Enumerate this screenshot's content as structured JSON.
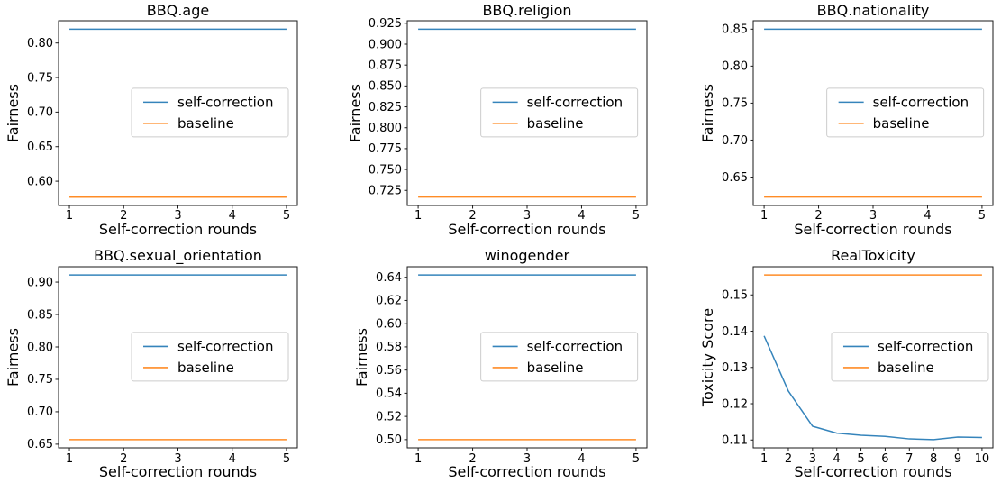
{
  "figure": {
    "background": "#ffffff",
    "legend_labels": [
      "self-correction",
      "baseline"
    ],
    "series_colors": {
      "self-correction": "#1f77b4",
      "baseline": "#ff7f0e"
    },
    "spine_color": "#1a1a1a"
  },
  "chart_data": [
    {
      "type": "line",
      "title": "BBQ.age",
      "xlabel": "Self-correction rounds",
      "ylabel": "Fairness",
      "x": [
        1,
        2,
        3,
        4,
        5
      ],
      "xticks": [
        1,
        2,
        3,
        4,
        5
      ],
      "xlim": [
        0.8,
        5.2
      ],
      "yticks": [
        0.6,
        0.65,
        0.7,
        0.75,
        0.8
      ],
      "ytick_decimals": 2,
      "ylim": [
        0.5649,
        0.8322
      ],
      "grid": false,
      "legend": {
        "position": "center-right",
        "fx": 0.634,
        "fy": 0.497
      },
      "series": [
        {
          "name": "self-correction",
          "color": "#1f77b4",
          "values": [
            0.82,
            0.82,
            0.82,
            0.82,
            0.82
          ]
        },
        {
          "name": "baseline",
          "color": "#ff7f0e",
          "values": [
            0.577,
            0.577,
            0.577,
            0.577,
            0.577
          ]
        }
      ]
    },
    {
      "type": "line",
      "title": "BBQ.religion",
      "xlabel": "Self-correction rounds",
      "ylabel": "Fairness",
      "x": [
        1,
        2,
        3,
        4,
        5
      ],
      "xticks": [
        1,
        2,
        3,
        4,
        5
      ],
      "xlim": [
        0.8,
        5.2
      ],
      "yticks": [
        0.725,
        0.75,
        0.775,
        0.8,
        0.825,
        0.85,
        0.875,
        0.9,
        0.925
      ],
      "ytick_decimals": 3,
      "ylim": [
        0.70695,
        0.92805
      ],
      "grid": false,
      "legend": {
        "position": "center-right",
        "fx": 0.634,
        "fy": 0.497
      },
      "series": [
        {
          "name": "self-correction",
          "color": "#1f77b4",
          "values": [
            0.918,
            0.918,
            0.918,
            0.918,
            0.918
          ]
        },
        {
          "name": "baseline",
          "color": "#ff7f0e",
          "values": [
            0.717,
            0.717,
            0.717,
            0.717,
            0.717
          ]
        }
      ]
    },
    {
      "type": "line",
      "title": "BBQ.nationality",
      "xlabel": "Self-correction rounds",
      "ylabel": "Fairness",
      "x": [
        1,
        2,
        3,
        4,
        5
      ],
      "xticks": [
        1,
        2,
        3,
        4,
        5
      ],
      "xlim": [
        0.8,
        5.2
      ],
      "yticks": [
        0.65,
        0.7,
        0.75,
        0.8,
        0.85
      ],
      "ytick_decimals": 2,
      "ylim": [
        0.61165,
        0.86135
      ],
      "grid": false,
      "legend": {
        "position": "center-right",
        "fx": 0.634,
        "fy": 0.497
      },
      "series": [
        {
          "name": "self-correction",
          "color": "#1f77b4",
          "values": [
            0.85,
            0.85,
            0.85,
            0.85,
            0.85
          ]
        },
        {
          "name": "baseline",
          "color": "#ff7f0e",
          "values": [
            0.623,
            0.623,
            0.623,
            0.623,
            0.623
          ]
        }
      ]
    },
    {
      "type": "line",
      "title": "BBQ.sexual_orientation",
      "xlabel": "Self-correction rounds",
      "ylabel": "Fairness",
      "x": [
        1,
        2,
        3,
        4,
        5
      ],
      "xticks": [
        1,
        2,
        3,
        4,
        5
      ],
      "xlim": [
        0.8,
        5.2
      ],
      "yticks": [
        0.65,
        0.7,
        0.75,
        0.8,
        0.85,
        0.9
      ],
      "ytick_decimals": 2,
      "ylim": [
        0.6443,
        0.9237
      ],
      "grid": false,
      "legend": {
        "position": "center-right",
        "fx": 0.634,
        "fy": 0.497
      },
      "series": [
        {
          "name": "self-correction",
          "color": "#1f77b4",
          "values": [
            0.911,
            0.911,
            0.911,
            0.911,
            0.911
          ]
        },
        {
          "name": "baseline",
          "color": "#ff7f0e",
          "values": [
            0.657,
            0.657,
            0.657,
            0.657,
            0.657
          ]
        }
      ]
    },
    {
      "type": "line",
      "title": "winogender",
      "xlabel": "Self-correction rounds",
      "ylabel": "Fairness",
      "x": [
        1,
        2,
        3,
        4,
        5
      ],
      "xticks": [
        1,
        2,
        3,
        4,
        5
      ],
      "xlim": [
        0.8,
        5.2
      ],
      "yticks": [
        0.5,
        0.52,
        0.54,
        0.56,
        0.58,
        0.6,
        0.62,
        0.64
      ],
      "ytick_decimals": 2,
      "ylim": [
        0.4929,
        0.6491
      ],
      "grid": false,
      "legend": {
        "position": "center-right",
        "fx": 0.634,
        "fy": 0.497
      },
      "series": [
        {
          "name": "self-correction",
          "color": "#1f77b4",
          "values": [
            0.642,
            0.642,
            0.642,
            0.642,
            0.642
          ]
        },
        {
          "name": "baseline",
          "color": "#ff7f0e",
          "values": [
            0.5,
            0.5,
            0.5,
            0.5,
            0.5
          ]
        }
      ]
    },
    {
      "type": "line",
      "title": "RealToxicity",
      "xlabel": "Self-correction rounds",
      "ylabel": "Toxicity Score",
      "x": [
        1,
        2,
        3,
        4,
        5,
        6,
        7,
        8,
        9,
        10
      ],
      "xticks": [
        1,
        2,
        3,
        4,
        5,
        6,
        7,
        8,
        9,
        10
      ],
      "xlim": [
        0.55,
        10.45
      ],
      "yticks": [
        0.11,
        0.12,
        0.13,
        0.14,
        0.15
      ],
      "ytick_decimals": 2,
      "ylim": [
        0.10783,
        0.15777
      ],
      "grid": false,
      "legend": {
        "position": "center-right",
        "fx": 0.654,
        "fy": 0.497
      },
      "series": [
        {
          "name": "self-correction",
          "color": "#1f77b4",
          "values": [
            0.1387,
            0.1235,
            0.1138,
            0.1119,
            0.1113,
            0.111,
            0.1103,
            0.1101,
            0.1108,
            0.1107
          ]
        },
        {
          "name": "baseline",
          "color": "#ff7f0e",
          "values": [
            0.1555,
            0.1555,
            0.1555,
            0.1555,
            0.1555,
            0.1555,
            0.1555,
            0.1555,
            0.1555,
            0.1555
          ]
        }
      ]
    }
  ]
}
